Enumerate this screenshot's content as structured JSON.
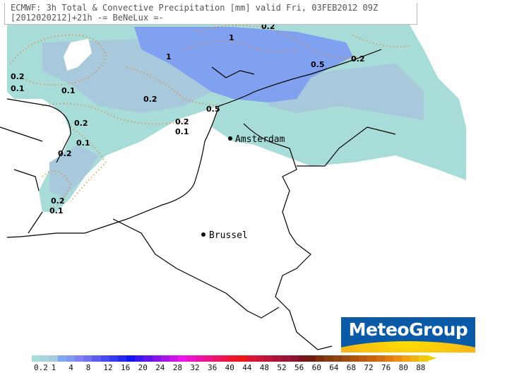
{
  "header": {
    "line1": "ECMWF: 3h Total & Convective Precipitation [mm] valid Fri, 03FEB2012 09Z",
    "line2": "[2012020212]+21h -= BeNeLux =-"
  },
  "cities": [
    {
      "name": "Amsterdam"
    },
    {
      "name": "Brussel"
    }
  ],
  "contour_labels": [
    "0.2",
    "1",
    "1",
    "0.5",
    "0.2",
    "0.2",
    "0.1",
    "0.1",
    "0.2",
    "0.5",
    "0.2",
    "0.2",
    "0.1",
    "0.1",
    "0.2",
    "0.2",
    "0.1"
  ],
  "logo": {
    "text": "MeteoGroup"
  },
  "legend": {
    "unit": "mm",
    "labels": [
      "0.2",
      "1",
      "4",
      "8",
      "12",
      "16",
      "20",
      "24",
      "28",
      "32",
      "36",
      "40",
      "44",
      "48",
      "52",
      "56",
      "60",
      "64",
      "68",
      "72",
      "76",
      "80",
      "88"
    ],
    "colors": [
      "#a8dcd8",
      "#a8d4dc",
      "#a8c8dc",
      "#80a8f0",
      "#8098f0",
      "#8080f0",
      "#7070f0",
      "#5c5cf0",
      "#4848f0",
      "#3838f0",
      "#2828f0",
      "#1414f0",
      "#3c14f0",
      "#6014ec",
      "#8414ec",
      "#a814e8",
      "#cc14e8",
      "#ec14ec",
      "#ec14c8",
      "#ec14a8",
      "#ec1488",
      "#ec1468",
      "#ec1448",
      "#ec1428",
      "#ec1414",
      "#dc1438",
      "#cc1438",
      "#bc1438",
      "#ac1438",
      "#9c1438",
      "#8c1430",
      "#7c1420",
      "#6c1c10",
      "#783010",
      "#843c10",
      "#904410",
      "#9c4c10",
      "#ac5410",
      "#bc5c10",
      "#c86410",
      "#d47010",
      "#e07c10",
      "#ec8c10",
      "#f0a010",
      "#f0b410",
      "#f0c810"
    ],
    "arrow_color": "#f1d010"
  }
}
